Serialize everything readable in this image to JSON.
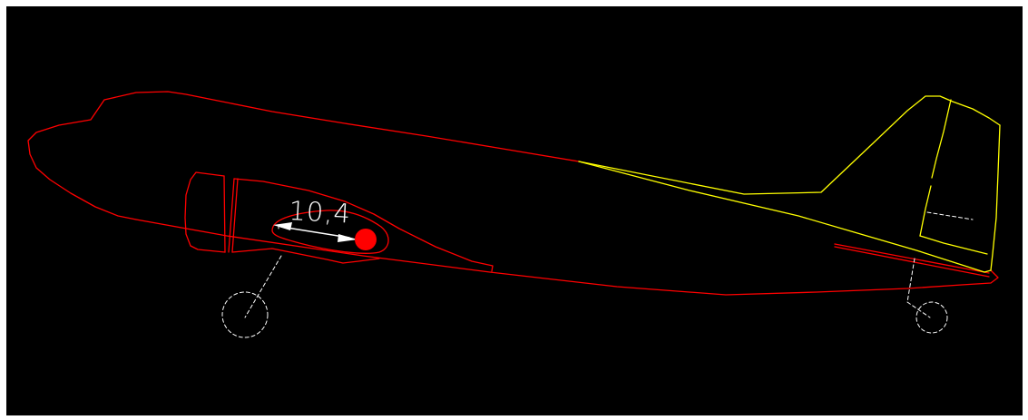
{
  "dimension": {
    "label": "10,4"
  },
  "colors": {
    "background": "#000000",
    "frame": "#ffffff",
    "fuselage": "#ff0000",
    "tail": "#ffff00",
    "gear": "#ffffff",
    "dimension": "#ffffff",
    "marker": "#ff0000"
  }
}
